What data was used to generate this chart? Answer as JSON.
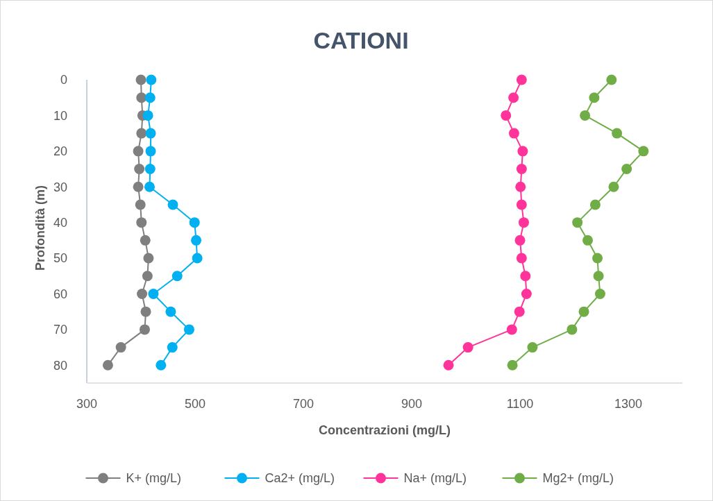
{
  "chart_data": {
    "type": "line",
    "title": "CATIONI",
    "xlabel": "Concentrazioni (mg/L)",
    "ylabel": "Profondità (m)",
    "xlim": [
      300,
      1400
    ],
    "xticks": [
      300,
      500,
      700,
      900,
      1100,
      1300
    ],
    "ylim": [
      85,
      0
    ],
    "yticks": [
      0,
      10,
      20,
      30,
      40,
      50,
      60,
      70,
      80
    ],
    "grid": false,
    "legend": "bottom",
    "marker": "circle",
    "line_style": "solid",
    "series": [
      {
        "name": "K+ (mg/L)",
        "color": "#7f7f7f",
        "x": [
          400,
          401,
          403,
          401,
          395,
          397,
          395,
          399,
          401,
          408,
          414,
          412,
          402,
          409,
          407,
          363,
          339
        ],
        "values": [
          0,
          5,
          10,
          15,
          20,
          25,
          30,
          35,
          40,
          45,
          50,
          55,
          60,
          65,
          70,
          75,
          80
        ]
      },
      {
        "name": "Ca2+ (mg/L)",
        "color": "#00b0f0",
        "x": [
          419,
          417,
          413,
          418,
          418,
          417,
          416,
          459,
          499,
          502,
          504,
          467,
          423,
          455,
          489,
          458,
          437
        ],
        "values": [
          0,
          5,
          10,
          15,
          20,
          25,
          30,
          35,
          40,
          45,
          50,
          55,
          60,
          65,
          70,
          75,
          80
        ]
      },
      {
        "name": "Na+ (mg/L)",
        "color": "#ff3399",
        "x": [
          1103,
          1088,
          1074,
          1089,
          1105,
          1103,
          1101,
          1103,
          1107,
          1100,
          1103,
          1110,
          1112,
          1099,
          1085,
          1004,
          968
        ],
        "values": [
          0,
          5,
          10,
          15,
          20,
          25,
          30,
          35,
          40,
          45,
          50,
          55,
          60,
          65,
          70,
          75,
          80
        ]
      },
      {
        "name": "Mg2+ (mg/L)",
        "color": "#70ad47",
        "x": [
          1269,
          1237,
          1220,
          1279,
          1328,
          1297,
          1273,
          1239,
          1206,
          1225,
          1243,
          1245,
          1248,
          1218,
          1196,
          1123,
          1086
        ],
        "values": [
          0,
          5,
          10,
          15,
          20,
          25,
          30,
          35,
          40,
          45,
          50,
          55,
          60,
          65,
          70,
          75,
          80
        ]
      }
    ]
  }
}
